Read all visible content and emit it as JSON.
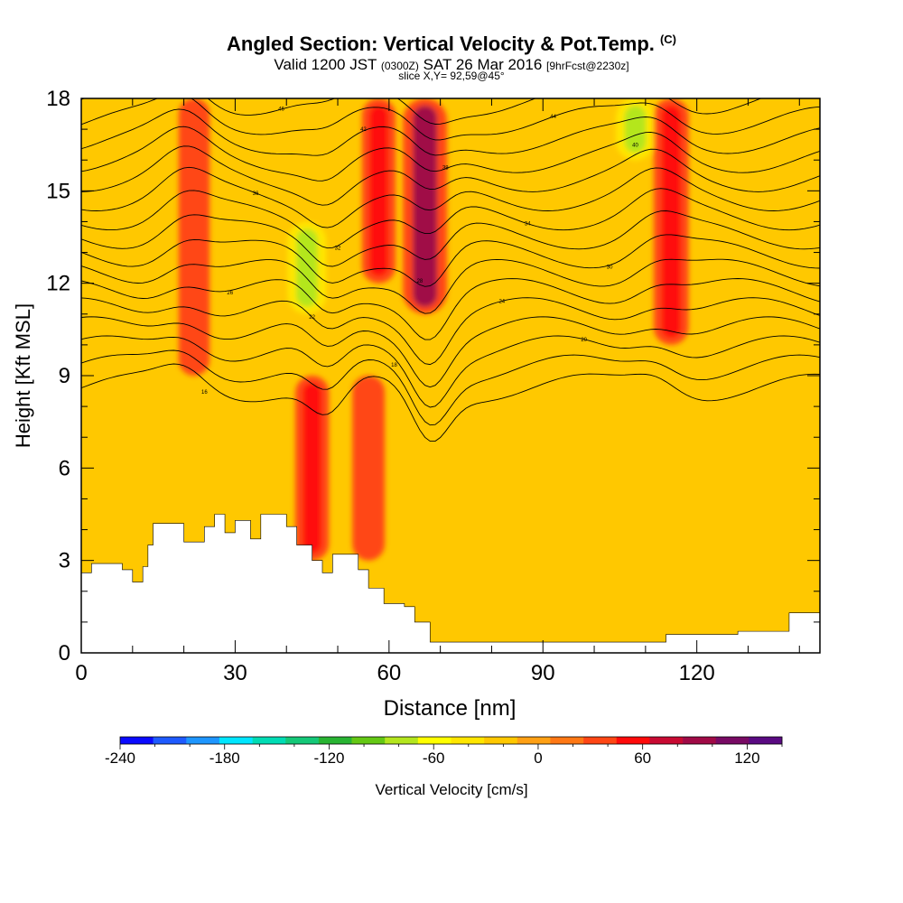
{
  "header": {
    "title": "Angled Section: Vertical Velocity & Pot.Temp.",
    "title_mark": "(C)",
    "valid_prefix": "Valid 1200 JST",
    "valid_utc": "(0300Z)",
    "valid_date": "SAT 26 Mar 2016",
    "forecast": "[9hrFcst@2230z]",
    "slice": "slice X,Y= 92,59@45°"
  },
  "chart_data": {
    "type": "heatmap",
    "xlabel": "Distance [nm]",
    "ylabel": "Height [Kft MSL]",
    "xlim": [
      0,
      144
    ],
    "ylim": [
      0,
      18
    ],
    "x_ticks": [
      0,
      30,
      60,
      90,
      120
    ],
    "y_ticks": [
      0,
      3,
      6,
      9,
      12,
      15,
      18
    ],
    "colorbar": {
      "label": "Vertical Velocity [cm/s]",
      "range": [
        -240,
        140
      ],
      "step": 20,
      "tick_values": [
        -240,
        -180,
        -120,
        -60,
        0,
        60,
        120
      ],
      "colors": [
        "#0a0aff",
        "#1e5aff",
        "#1e96ff",
        "#00e6ff",
        "#00dcb4",
        "#14c878",
        "#28b432",
        "#64c814",
        "#b4e61e",
        "#ffff00",
        "#ffe600",
        "#ffc800",
        "#ffa014",
        "#ff7814",
        "#ff4614",
        "#ff0a0a",
        "#c80a32",
        "#a00a46",
        "#780a64",
        "#5a0a82"
      ]
    },
    "vertical_velocity_features_cm_s": [
      {
        "x": 22,
        "y_range": [
          9,
          18
        ],
        "peak": 50
      },
      {
        "x": 44,
        "y_range": [
          11,
          14
        ],
        "peak": -80
      },
      {
        "x": 45,
        "y_range": [
          3,
          9
        ],
        "peak": 60
      },
      {
        "x": 56,
        "y_range": [
          3,
          9
        ],
        "peak": 55
      },
      {
        "x": 58,
        "y_range": [
          12,
          18
        ],
        "peak": 60
      },
      {
        "x": 67,
        "y_range": [
          11,
          18
        ],
        "peak": 100
      },
      {
        "x": 108,
        "y_range": [
          16,
          18
        ],
        "peak": -80
      },
      {
        "x": 115,
        "y_range": [
          10,
          18
        ],
        "peak": 65
      }
    ],
    "terrain_height_kft": [
      [
        0,
        2.6
      ],
      [
        2,
        2.9
      ],
      [
        6,
        2.9
      ],
      [
        8,
        2.7
      ],
      [
        10,
        2.3
      ],
      [
        12,
        2.8
      ],
      [
        13,
        3.5
      ],
      [
        14,
        4.2
      ],
      [
        20,
        3.6
      ],
      [
        24,
        4.1
      ],
      [
        26,
        4.5
      ],
      [
        28,
        3.9
      ],
      [
        30,
        4.3
      ],
      [
        33,
        3.7
      ],
      [
        35,
        4.5
      ],
      [
        40,
        4.1
      ],
      [
        42,
        3.5
      ],
      [
        45,
        3.0
      ],
      [
        47,
        2.6
      ],
      [
        49,
        3.2
      ],
      [
        54,
        2.7
      ],
      [
        56,
        2.1
      ],
      [
        59,
        1.6
      ],
      [
        63,
        1.5
      ],
      [
        65,
        1.0
      ],
      [
        68,
        0.35
      ],
      [
        113,
        0.35
      ],
      [
        114,
        0.6
      ],
      [
        128,
        0.7
      ],
      [
        138,
        1.3
      ],
      [
        144,
        1.3
      ]
    ],
    "isentrope_label_values": [
      16,
      18,
      20,
      22,
      24,
      26,
      28,
      30,
      32,
      34,
      36,
      38,
      40,
      42,
      44,
      46
    ]
  }
}
